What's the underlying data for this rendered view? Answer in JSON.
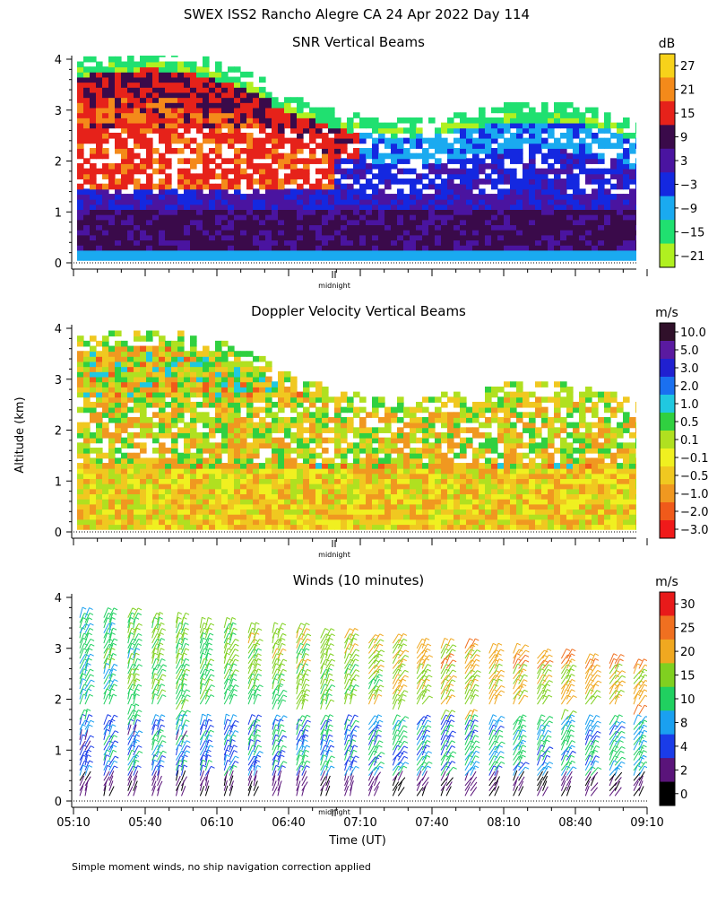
{
  "page": {
    "title": "SWEX ISS2 Rancho Alegre CA  24 Apr 2022 Day 114",
    "ylabel": "Altitude (km)",
    "xlabel": "Time (UT)",
    "footnote": "Simple moment winds, no ship navigation correction applied"
  },
  "chart_data": [
    {
      "type": "heatmap",
      "title": "SNR Vertical Beams",
      "units": "dB",
      "ylim": [
        0,
        4
      ],
      "yticks": [
        "0",
        "1",
        "2",
        "3",
        "4"
      ],
      "xtick_label": "midnight",
      "colorbar": {
        "labels": [
          "27",
          "21",
          "15",
          "9",
          "3",
          "−3",
          "−9",
          "−15",
          "−21"
        ],
        "colors": [
          "#f7d21a",
          "#f48a1a",
          "#e6221a",
          "#3a0a4a",
          "#4a14a0",
          "#1428e0",
          "#1aaaf0",
          "#20e070",
          "#b0f020"
        ]
      },
      "description_values": {
        "top_echo_km_start": 3.9,
        "top_echo_km_end": 2.6
      }
    },
    {
      "type": "heatmap",
      "title": "Doppler Velocity Vertical Beams",
      "units": "m/s",
      "ylim": [
        0,
        4
      ],
      "yticks": [
        "0",
        "1",
        "2",
        "3",
        "4"
      ],
      "xtick_label": "midnight",
      "colorbar": {
        "labels": [
          "10.0",
          "5.0",
          "3.0",
          "2.0",
          "1.0",
          "0.5",
          "0.1",
          "−0.1",
          "−0.5",
          "−1.0",
          "−2.0",
          "−3.0"
        ],
        "colors": [
          "#30102a",
          "#5a1aa0",
          "#2020d0",
          "#1a70f0",
          "#20c8e0",
          "#30d040",
          "#b0e020",
          "#f0f020",
          "#f0c820",
          "#f09820",
          "#f05a1a",
          "#f01a1a"
        ]
      }
    },
    {
      "type": "scatter",
      "title": "Winds (10 minutes)",
      "units": "m/s",
      "ylim": [
        0,
        4
      ],
      "yticks": [
        "0",
        "1",
        "2",
        "3",
        "4"
      ],
      "xticks": [
        "05:10",
        "05:40",
        "06:10",
        "06:40",
        "07:10",
        "07:40",
        "08:10",
        "08:40",
        "09:10"
      ],
      "xtick_label": "midnight",
      "colorbar": {
        "labels": [
          "30",
          "25",
          "20",
          "15",
          "10",
          "8",
          "4",
          "2",
          "0"
        ],
        "colors": [
          "#e81a1a",
          "#f07020",
          "#f0a820",
          "#80d020",
          "#20d060",
          "#1aa0f0",
          "#1a3ce8",
          "#5a147a",
          "#000000"
        ]
      }
    }
  ]
}
